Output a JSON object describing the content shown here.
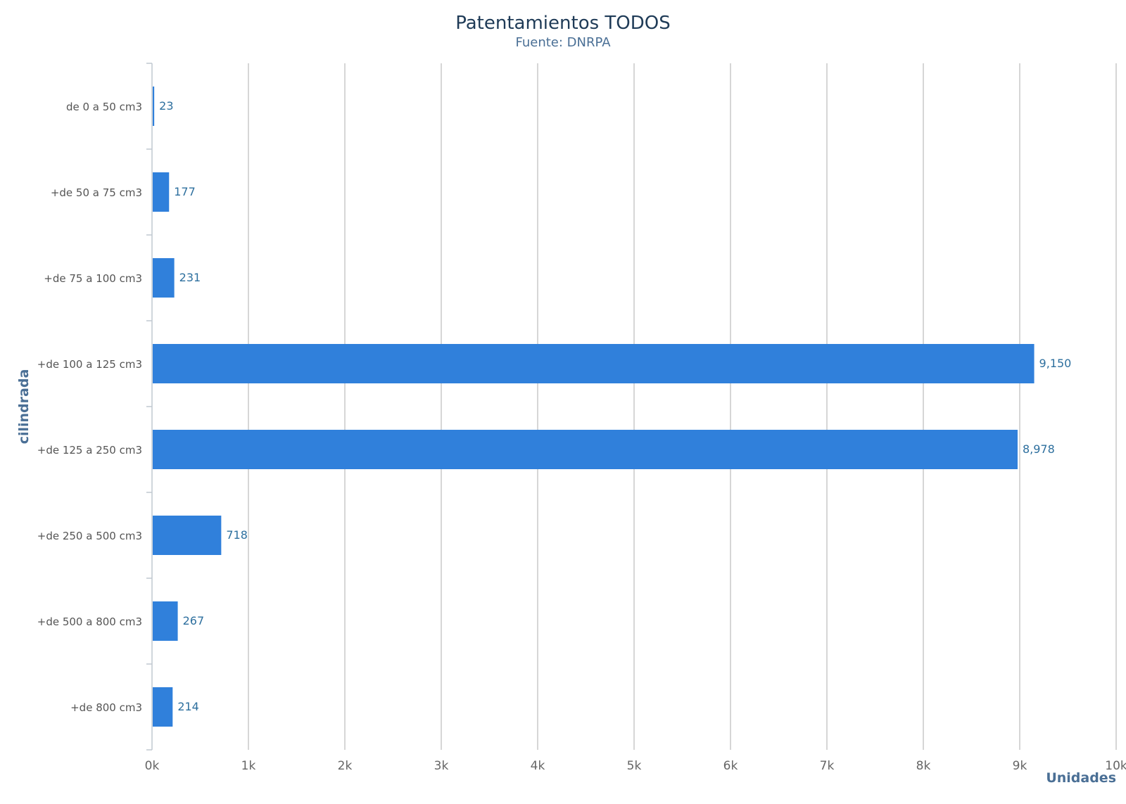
{
  "chart_data": {
    "type": "bar",
    "orientation": "horizontal",
    "title": "Patentamientos TODOS",
    "subtitle": "Fuente: DNRPA",
    "xlabel": "Unidades",
    "ylabel": "cilindrada",
    "categories": [
      "de 0 a 50 cm3",
      "+de 50 a 75 cm3",
      "+de 75 a 100 cm3",
      "+de 100 a 125 cm3",
      "+de 125 a 250 cm3",
      "+de 250 a 500 cm3",
      "+de 500 a 800 cm3",
      "+de 800 cm3"
    ],
    "values": [
      23,
      177,
      231,
      9150,
      8978,
      718,
      267,
      214
    ],
    "value_labels": [
      "23",
      "177",
      "231",
      "9,150",
      "8,978",
      "718",
      "267",
      "214"
    ],
    "xlim": [
      0,
      10000
    ],
    "x_ticks": [
      "0k",
      "1k",
      "2k",
      "3k",
      "4k",
      "5k",
      "6k",
      "7k",
      "8k",
      "9k",
      "10k"
    ],
    "grid": true,
    "legend": "none",
    "bar_color": "#3080db"
  }
}
